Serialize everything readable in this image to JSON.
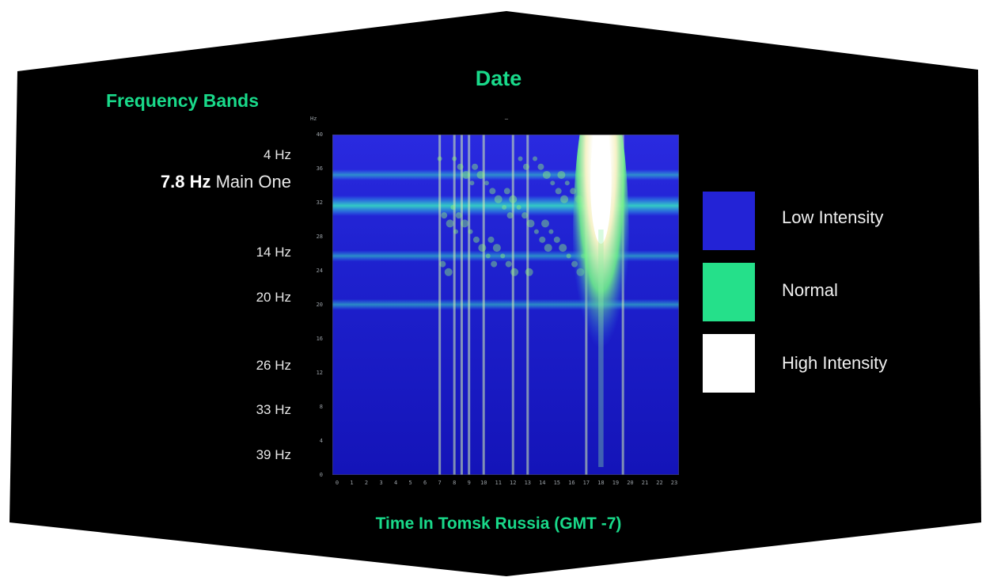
{
  "chart_data": {
    "type": "heatmap",
    "title": "Date",
    "subtitle": "—",
    "xlabel": "Time In Tomsk Russia (GMT -7)",
    "ylabel": "Frequency Bands",
    "y_unit_label": "Hz",
    "x_ticks": [
      "0",
      "1",
      "2",
      "3",
      "4",
      "5",
      "6",
      "7",
      "8",
      "9",
      "10",
      "11",
      "12",
      "13",
      "14",
      "15",
      "16",
      "17",
      "18",
      "19",
      "20",
      "21",
      "22",
      "23"
    ],
    "y_ticks": [
      "40",
      "36",
      "32",
      "28",
      "24",
      "20",
      "16",
      "12",
      "8",
      "4",
      "0"
    ],
    "frequency_bands": [
      {
        "value": "4 Hz",
        "note": ""
      },
      {
        "value": "7.8 Hz",
        "note": "Main One"
      },
      {
        "value": "14 Hz",
        "note": ""
      },
      {
        "value": "20 Hz",
        "note": ""
      },
      {
        "value": "26 Hz",
        "note": ""
      },
      {
        "value": "33 Hz",
        "note": ""
      },
      {
        "value": "39 Hz",
        "note": ""
      }
    ],
    "legend": [
      {
        "label": "Low Intensity",
        "color": "#2323d6"
      },
      {
        "label": "Normal",
        "color": "#25e08a"
      },
      {
        "label": "High Intensity",
        "color": "#ffffff"
      }
    ],
    "bright_band_hours": [
      17.5,
      18.5
    ],
    "vertical_bursts_hours": [
      7,
      8,
      8.5,
      9,
      10,
      12,
      13,
      17,
      19.5
    ],
    "horizontal_bands_hz": [
      4,
      7.8,
      14,
      20
    ],
    "colors": {
      "background": "#000000",
      "title_green": "#19d98a",
      "low": "#1a1ad0",
      "normal": "#33ee88",
      "high": "#ffffff"
    }
  }
}
